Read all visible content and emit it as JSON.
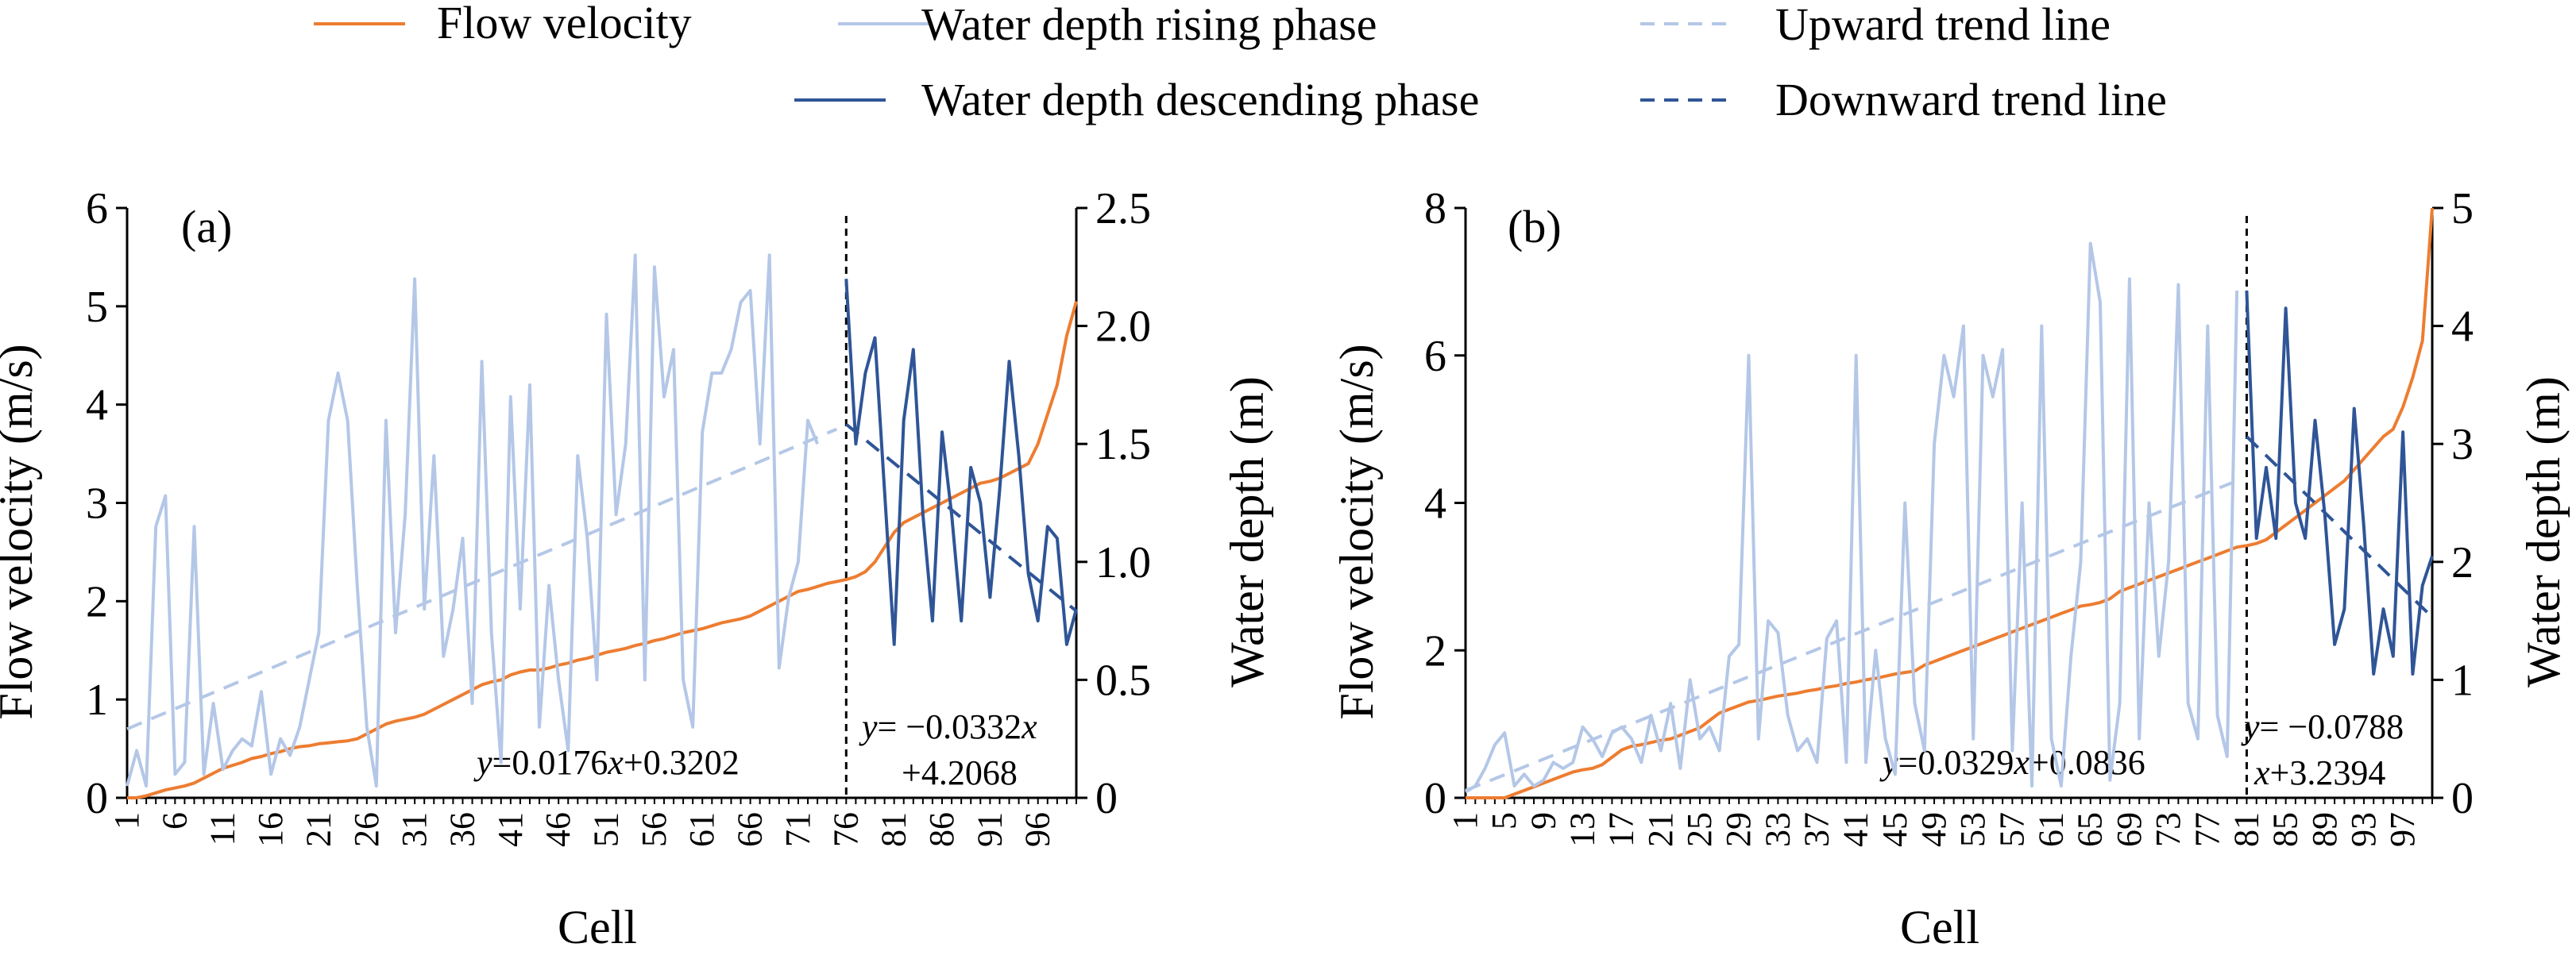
{
  "legend": {
    "items": [
      {
        "label": "Flow velocity",
        "style": "solid",
        "color": "#ed7d31"
      },
      {
        "label": "Water depth rising phase",
        "style": "solid",
        "color": "#b4c7e7"
      },
      {
        "label": "Water depth descending phase",
        "style": "solid",
        "color": "#2f5597"
      },
      {
        "label": "Upward trend line",
        "style": "dashed",
        "color": "#b4c7e7"
      },
      {
        "label": "Downward trend line",
        "style": "dashed",
        "color": "#2f5597"
      }
    ]
  },
  "chart_data": [
    {
      "type": "line",
      "panel_label": "(a)",
      "xlabel": "Cell",
      "ylabel": "Flow velocity (m/s)",
      "ylabel_right": "Water depth (m)",
      "xlim": [
        1,
        100
      ],
      "ylim": [
        0,
        6
      ],
      "ylim_right": [
        0,
        2.5
      ],
      "y_ticks": [
        "0",
        "1",
        "2",
        "3",
        "4",
        "5",
        "6"
      ],
      "y_ticks_right": [
        "0",
        "0.5",
        "1.0",
        "1.5",
        "2.0",
        "2.5"
      ],
      "x_ticks": [
        1,
        6,
        11,
        16,
        21,
        26,
        31,
        36,
        41,
        46,
        51,
        56,
        61,
        66,
        71,
        76,
        81,
        86,
        91,
        96
      ],
      "divider_x": 76,
      "series": [
        {
          "name": "Flow velocity",
          "axis": "left",
          "color": "#ed7d31",
          "x_start": 1,
          "values": [
            0.0,
            0.0,
            0.02,
            0.05,
            0.08,
            0.1,
            0.12,
            0.15,
            0.2,
            0.25,
            0.3,
            0.33,
            0.36,
            0.4,
            0.42,
            0.45,
            0.47,
            0.5,
            0.52,
            0.53,
            0.55,
            0.56,
            0.57,
            0.58,
            0.6,
            0.65,
            0.7,
            0.75,
            0.78,
            0.8,
            0.82,
            0.85,
            0.9,
            0.95,
            1.0,
            1.05,
            1.1,
            1.15,
            1.18,
            1.2,
            1.25,
            1.28,
            1.3,
            1.3,
            1.32,
            1.35,
            1.37,
            1.4,
            1.42,
            1.45,
            1.48,
            1.5,
            1.52,
            1.55,
            1.57,
            1.6,
            1.62,
            1.65,
            1.68,
            1.7,
            1.72,
            1.75,
            1.78,
            1.8,
            1.82,
            1.85,
            1.9,
            1.95,
            2.0,
            2.05,
            2.1,
            2.12,
            2.15,
            2.18,
            2.2,
            2.22,
            2.25,
            2.3,
            2.4,
            2.55,
            2.7,
            2.8,
            2.85,
            2.9,
            2.95,
            3.0,
            3.05,
            3.1,
            3.15,
            3.2,
            3.22,
            3.25,
            3.3,
            3.35,
            3.4,
            3.6,
            3.9,
            4.2,
            4.7,
            5.05
          ]
        },
        {
          "name": "Water depth rising phase",
          "axis": "right",
          "color": "#b4c7e7",
          "x_start": 1,
          "values": [
            0.05,
            0.2,
            0.05,
            1.15,
            1.28,
            0.1,
            0.15,
            1.15,
            0.1,
            0.4,
            0.12,
            0.2,
            0.25,
            0.22,
            0.45,
            0.1,
            0.25,
            0.18,
            0.3,
            0.5,
            0.7,
            1.6,
            1.8,
            1.6,
            0.9,
            0.3,
            0.05,
            1.6,
            0.7,
            1.2,
            2.2,
            0.8,
            1.45,
            0.6,
            0.8,
            1.1,
            0.4,
            1.85,
            0.7,
            0.15,
            1.7,
            0.8,
            1.75,
            0.3,
            0.9,
            0.5,
            0.2,
            1.45,
            1.1,
            0.5,
            2.05,
            1.2,
            1.5,
            2.3,
            0.5,
            2.25,
            1.7,
            1.9,
            0.5,
            0.3,
            1.55,
            1.8,
            1.8,
            1.9,
            2.1,
            2.15,
            1.5,
            2.3,
            0.55,
            0.85,
            1.0,
            1.6,
            1.5
          ]
        },
        {
          "name": "Water depth descending phase",
          "axis": "right",
          "color": "#2f5597",
          "x_start": 76,
          "values": [
            2.2,
            1.5,
            1.8,
            1.95,
            1.3,
            0.65,
            1.6,
            1.9,
            1.2,
            0.75,
            1.55,
            1.2,
            0.75,
            1.4,
            1.25,
            0.85,
            1.3,
            1.85,
            1.45,
            0.95,
            0.75,
            1.15,
            1.1,
            0.65,
            0.8
          ]
        },
        {
          "name": "Upward trend line",
          "axis": "left",
          "color": "#b4c7e7",
          "dashed": true,
          "x_range": [
            1,
            75
          ],
          "y_range": [
            0.7,
            3.75
          ]
        },
        {
          "name": "Downward trend line",
          "axis": "left",
          "color": "#2f5597",
          "dashed": true,
          "x_range": [
            76,
            100
          ],
          "y_range": [
            3.8,
            1.9
          ]
        }
      ],
      "annotations": [
        {
          "text_var": "y",
          "text_rest": "=0.0176",
          "text_var2": "x",
          "text_tail": "+0.3202"
        },
        {
          "line1_var": "y",
          "line1_rest": "= −0.0332",
          "line1_var2": "x",
          "line2": "+4.2068"
        }
      ]
    },
    {
      "type": "line",
      "panel_label": "(b)",
      "xlabel": "Cell",
      "ylabel": "Flow velocity (m/s)",
      "ylabel_right": "Water depth (m)",
      "xlim": [
        1,
        100
      ],
      "ylim": [
        0,
        8
      ],
      "ylim_right": [
        0,
        5
      ],
      "y_ticks": [
        "0",
        "2",
        "4",
        "6",
        "8"
      ],
      "y_ticks_right": [
        "0",
        "1",
        "2",
        "3",
        "4",
        "5"
      ],
      "x_ticks": [
        1,
        5,
        9,
        13,
        17,
        21,
        25,
        29,
        33,
        37,
        41,
        45,
        49,
        53,
        57,
        61,
        65,
        69,
        73,
        77,
        81,
        85,
        89,
        93,
        97
      ],
      "divider_x": 81,
      "series": [
        {
          "name": "Flow velocity",
          "axis": "left",
          "color": "#ed7d31",
          "x_start": 1,
          "values": [
            0.0,
            0.0,
            0.0,
            0.0,
            0.0,
            0.05,
            0.1,
            0.15,
            0.2,
            0.25,
            0.3,
            0.35,
            0.38,
            0.4,
            0.45,
            0.55,
            0.65,
            0.7,
            0.72,
            0.75,
            0.78,
            0.8,
            0.85,
            0.9,
            0.95,
            1.05,
            1.15,
            1.2,
            1.25,
            1.3,
            1.32,
            1.35,
            1.38,
            1.4,
            1.42,
            1.45,
            1.47,
            1.5,
            1.52,
            1.55,
            1.57,
            1.6,
            1.62,
            1.65,
            1.68,
            1.7,
            1.72,
            1.8,
            1.85,
            1.9,
            1.95,
            2.0,
            2.05,
            2.1,
            2.15,
            2.2,
            2.25,
            2.3,
            2.35,
            2.4,
            2.45,
            2.5,
            2.55,
            2.6,
            2.62,
            2.65,
            2.7,
            2.8,
            2.85,
            2.9,
            2.95,
            3.0,
            3.05,
            3.1,
            3.15,
            3.2,
            3.25,
            3.3,
            3.35,
            3.4,
            3.42,
            3.45,
            3.5,
            3.6,
            3.7,
            3.8,
            3.9,
            4.0,
            4.1,
            4.2,
            4.3,
            4.45,
            4.6,
            4.75,
            4.9,
            5.0,
            5.3,
            5.7,
            6.2,
            8.0
          ]
        },
        {
          "name": "Water depth rising phase",
          "axis": "right",
          "color": "#b4c7e7",
          "x_start": 1,
          "values": [
            0.05,
            0.1,
            0.25,
            0.45,
            0.55,
            0.1,
            0.2,
            0.1,
            0.15,
            0.3,
            0.25,
            0.3,
            0.6,
            0.5,
            0.35,
            0.55,
            0.6,
            0.5,
            0.3,
            0.7,
            0.4,
            0.8,
            0.25,
            1.0,
            0.5,
            0.6,
            0.4,
            1.2,
            1.3,
            3.75,
            0.5,
            1.5,
            1.4,
            0.7,
            0.4,
            0.5,
            0.3,
            1.35,
            1.5,
            0.3,
            3.75,
            0.3,
            1.25,
            0.5,
            0.2,
            2.5,
            0.8,
            0.4,
            3.0,
            3.75,
            3.4,
            4.0,
            0.5,
            3.75,
            3.4,
            3.8,
            0.4,
            2.5,
            0.1,
            4.0,
            0.5,
            0.1,
            1.2,
            2.0,
            4.7,
            4.2,
            0.15,
            0.8,
            4.4,
            0.5,
            2.5,
            1.2,
            2.0,
            4.35,
            0.8,
            0.5,
            4.0,
            0.7,
            0.35,
            4.3
          ]
        },
        {
          "name": "Water depth descending phase",
          "axis": "right",
          "color": "#2f5597",
          "x_start": 81,
          "values": [
            4.3,
            2.2,
            2.8,
            2.2,
            4.15,
            2.5,
            2.2,
            3.2,
            2.4,
            1.3,
            1.6,
            3.3,
            2.3,
            1.05,
            1.6,
            1.2,
            3.1,
            1.05,
            1.8,
            2.05
          ]
        },
        {
          "name": "Upward trend line",
          "axis": "left",
          "color": "#b4c7e7",
          "dashed": true,
          "x_range": [
            1,
            80
          ],
          "y_range": [
            0.1,
            4.3
          ]
        },
        {
          "name": "Downward trend line",
          "axis": "left",
          "color": "#2f5597",
          "dashed": true,
          "x_range": [
            81,
            100
          ],
          "y_range": [
            4.9,
            2.45
          ]
        }
      ],
      "annotations": [
        {
          "text_var": "y",
          "text_rest": "=0.0329",
          "text_var2": "x",
          "text_tail": "+0.0836"
        },
        {
          "line1_var": "y",
          "line1_rest": "= −0.0788",
          "line1_var2": "",
          "line2_var": "x",
          "line2": "+3.2394"
        }
      ]
    }
  ]
}
